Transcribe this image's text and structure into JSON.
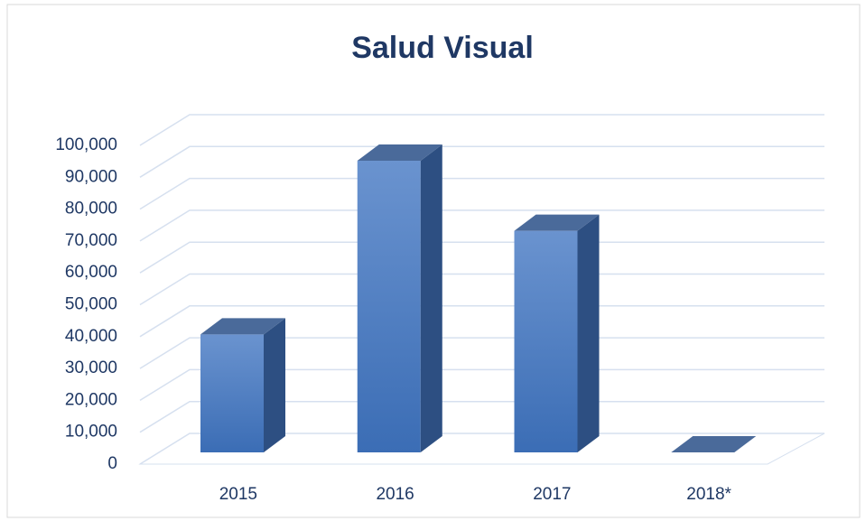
{
  "chart_data": {
    "type": "bar3d",
    "title": "Salud Visual",
    "categories": [
      "2015",
      "2016",
      "2017",
      "2018*"
    ],
    "values": [
      37000,
      91500,
      69500,
      0
    ],
    "color": "#4a7cc0",
    "ylim": [
      0,
      100000
    ],
    "yticks": [
      0,
      {
        "value": 10000,
        "label": "10,000"
      },
      {
        "value": 20000,
        "label": "20,000"
      },
      {
        "value": 30000,
        "label": "30,000"
      },
      {
        "value": 40000,
        "label": "40,000"
      },
      {
        "value": 50000,
        "label": "50,000"
      },
      {
        "value": 60000,
        "label": "60,000"
      },
      {
        "value": 70000,
        "label": "70,000"
      },
      {
        "value": 80000,
        "label": "80,000"
      },
      {
        "value": 90000,
        "label": "90,000"
      },
      {
        "value": 100000,
        "label": "100,000"
      }
    ],
    "grid": true
  }
}
